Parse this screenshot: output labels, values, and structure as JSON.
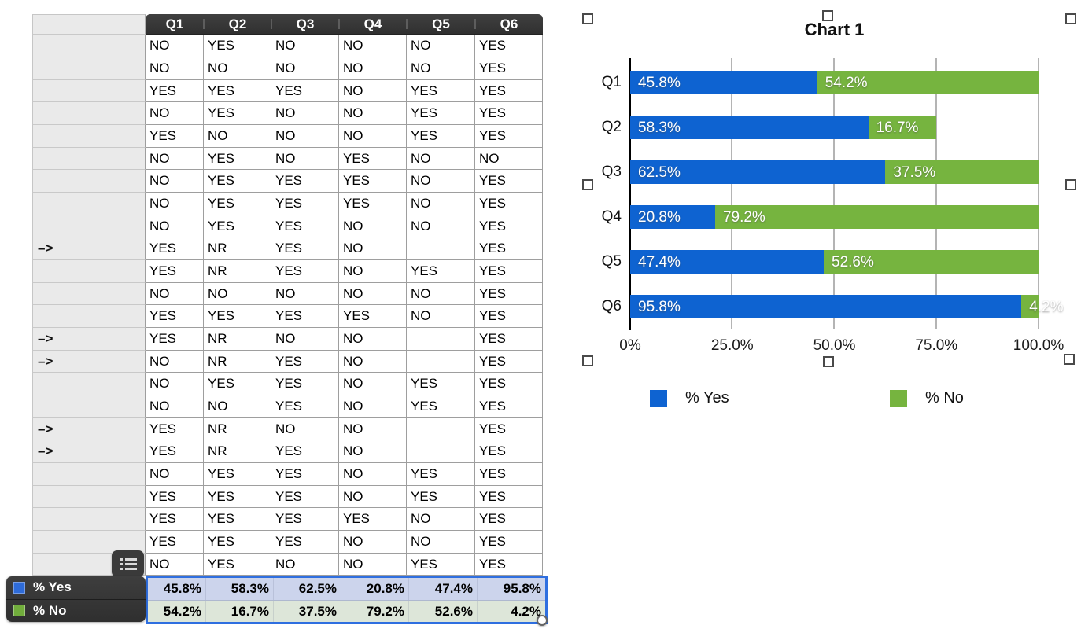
{
  "table": {
    "columns": [
      "Q1",
      "Q2",
      "Q3",
      "Q4",
      "Q5",
      "Q6"
    ],
    "rows": [
      {
        "marker": "",
        "cells": [
          "NO",
          "YES",
          "NO",
          "NO",
          "NO",
          "YES"
        ]
      },
      {
        "marker": "",
        "cells": [
          "NO",
          "NO",
          "NO",
          "NO",
          "NO",
          "YES"
        ]
      },
      {
        "marker": "",
        "cells": [
          "YES",
          "YES",
          "YES",
          "NO",
          "YES",
          "YES"
        ]
      },
      {
        "marker": "",
        "cells": [
          "NO",
          "YES",
          "NO",
          "NO",
          "YES",
          "YES"
        ]
      },
      {
        "marker": "",
        "cells": [
          "YES",
          "NO",
          "NO",
          "NO",
          "YES",
          "YES"
        ]
      },
      {
        "marker": "",
        "cells": [
          "NO",
          "YES",
          "NO",
          "YES",
          "NO",
          "NO"
        ]
      },
      {
        "marker": "",
        "cells": [
          "NO",
          "YES",
          "YES",
          "YES",
          "NO",
          "YES"
        ]
      },
      {
        "marker": "",
        "cells": [
          "NO",
          "YES",
          "YES",
          "YES",
          "NO",
          "YES"
        ]
      },
      {
        "marker": "",
        "cells": [
          "NO",
          "YES",
          "YES",
          "NO",
          "NO",
          "YES"
        ]
      },
      {
        "marker": "–>",
        "cells": [
          "YES",
          "NR",
          "YES",
          "NO",
          "",
          "YES"
        ]
      },
      {
        "marker": "",
        "cells": [
          "YES",
          "NR",
          "YES",
          "NO",
          "YES",
          "YES"
        ]
      },
      {
        "marker": "",
        "cells": [
          "NO",
          "NO",
          "NO",
          "NO",
          "NO",
          "YES"
        ]
      },
      {
        "marker": "",
        "cells": [
          "YES",
          "YES",
          "YES",
          "YES",
          "NO",
          "YES"
        ]
      },
      {
        "marker": "–>",
        "cells": [
          "YES",
          "NR",
          "NO",
          "NO",
          "",
          "YES"
        ]
      },
      {
        "marker": "–>",
        "cells": [
          "NO",
          "NR",
          "YES",
          "NO",
          "",
          "YES"
        ]
      },
      {
        "marker": "",
        "cells": [
          "NO",
          "YES",
          "YES",
          "NO",
          "YES",
          "YES"
        ]
      },
      {
        "marker": "",
        "cells": [
          "NO",
          "NO",
          "YES",
          "NO",
          "YES",
          "YES"
        ]
      },
      {
        "marker": "–>",
        "cells": [
          "YES",
          "NR",
          "NO",
          "NO",
          "",
          "YES"
        ]
      },
      {
        "marker": "–>",
        "cells": [
          "YES",
          "NR",
          "YES",
          "NO",
          "",
          "YES"
        ]
      },
      {
        "marker": "",
        "cells": [
          "NO",
          "YES",
          "YES",
          "NO",
          "YES",
          "YES"
        ]
      },
      {
        "marker": "",
        "cells": [
          "YES",
          "YES",
          "YES",
          "NO",
          "YES",
          "YES"
        ]
      },
      {
        "marker": "",
        "cells": [
          "YES",
          "YES",
          "YES",
          "YES",
          "NO",
          "YES"
        ]
      },
      {
        "marker": "",
        "cells": [
          "YES",
          "YES",
          "YES",
          "NO",
          "NO",
          "YES"
        ]
      },
      {
        "marker": "",
        "cells": [
          "NO",
          "YES",
          "NO",
          "NO",
          "YES",
          "YES"
        ]
      }
    ],
    "summary": [
      {
        "label": "% Yes",
        "swatch": "#2e6bd8",
        "values": [
          "45.8%",
          "58.3%",
          "62.5%",
          "20.8%",
          "47.4%",
          "95.8%"
        ]
      },
      {
        "label": "% No",
        "swatch": "#71ad3c",
        "values": [
          "54.2%",
          "16.7%",
          "37.5%",
          "79.2%",
          "52.6%",
          "4.2%"
        ]
      }
    ]
  },
  "chart_data": {
    "type": "bar",
    "orientation": "horizontal",
    "stacked": true,
    "title": "Chart 1",
    "categories": [
      "Q1",
      "Q2",
      "Q3",
      "Q4",
      "Q5",
      "Q6"
    ],
    "series": [
      {
        "name": "% Yes",
        "color": "#0e63d1",
        "values": [
          45.8,
          58.3,
          62.5,
          20.8,
          47.4,
          95.8
        ],
        "labels": [
          "45.8%",
          "58.3%",
          "62.5%",
          "20.8%",
          "47.4%",
          "95.8%"
        ]
      },
      {
        "name": "% No",
        "color": "#76b43f",
        "values": [
          54.2,
          16.7,
          37.5,
          79.2,
          52.6,
          4.2
        ],
        "labels": [
          "54.2%",
          "16.7%",
          "37.5%",
          "79.2%",
          "52.6%",
          "4.2%"
        ]
      }
    ],
    "x_ticks": [
      "0%",
      "25.0%",
      "50.0%",
      "75.0%",
      "100.0%"
    ],
    "xlim": [
      0,
      100
    ],
    "grid": true,
    "legend_position": "bottom"
  }
}
